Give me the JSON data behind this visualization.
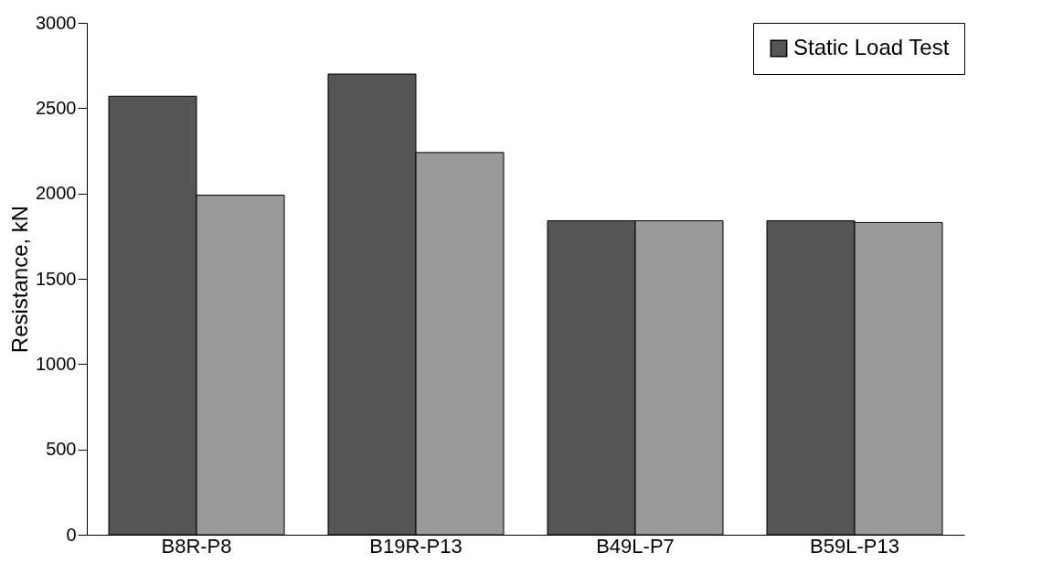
{
  "chart_data": {
    "type": "bar",
    "ylabel": "Resistance, kN",
    "categories": [
      "B8R-P8",
      "B19R-P13",
      "B49L-P7",
      "B59L-P13"
    ],
    "series": [
      {
        "name": "Static Load Test",
        "color": "#555555",
        "values": [
          2570,
          2700,
          1840,
          1840
        ]
      },
      {
        "color": "#999999",
        "values": [
          1990,
          2240,
          1840,
          1830
        ]
      }
    ],
    "ylim": [
      0,
      3000
    ],
    "yticks": [
      0,
      500,
      1000,
      1500,
      2000,
      2500,
      3000
    ],
    "grid": false,
    "legend": "top right"
  }
}
